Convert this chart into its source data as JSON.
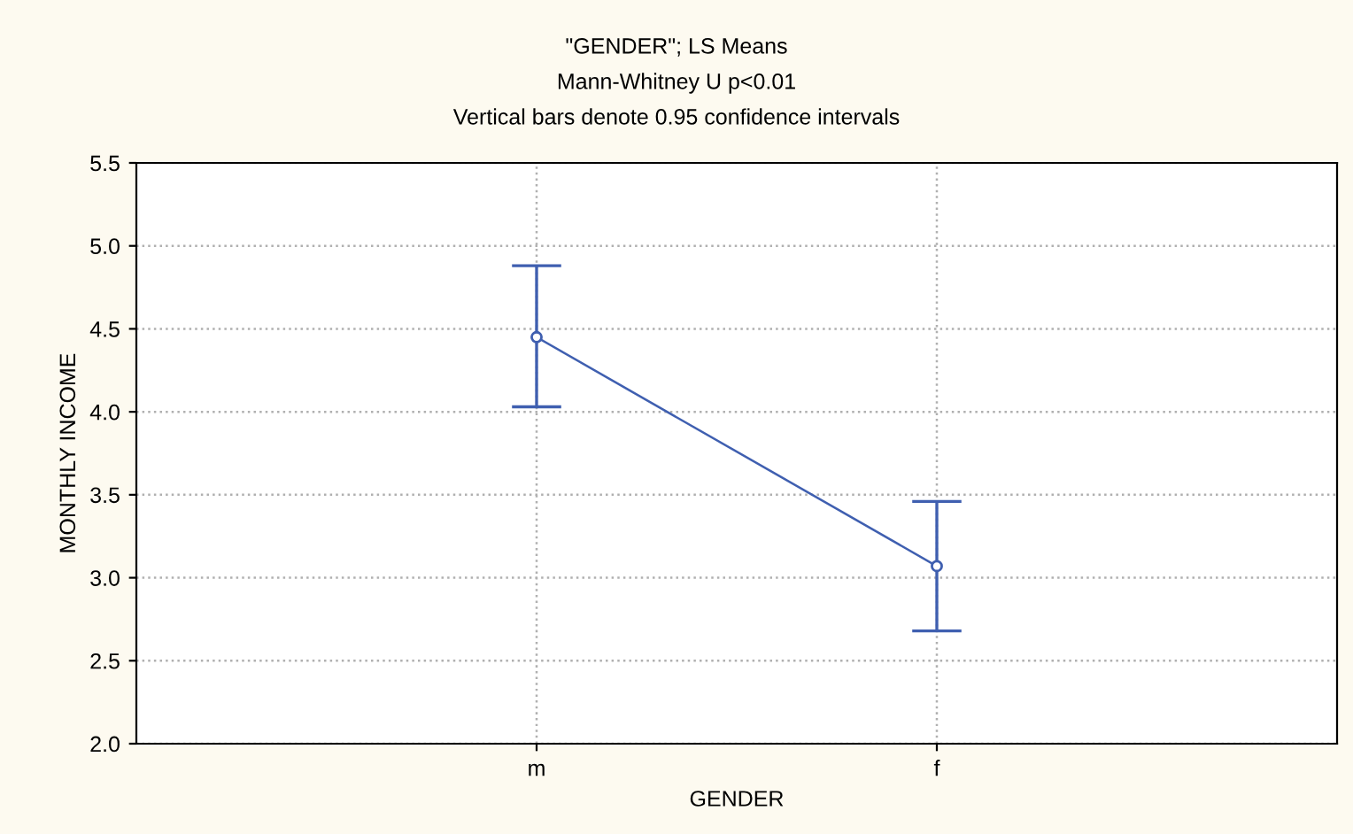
{
  "chart_data": {
    "type": "line",
    "title": "\"GENDER\"; LS Means",
    "subtitle": "Mann-Whitney U p<0.01",
    "annotations": [
      "Vertical bars denote 0.95 confidence intervals"
    ],
    "xlabel": "GENDER",
    "ylabel": "MONTHLY INCOME",
    "categories": [
      "m",
      "f"
    ],
    "series": [
      {
        "color": "#3f5fb0",
        "values": [
          4.45,
          3.07
        ],
        "errors": [
          [
            4.03,
            4.88
          ],
          [
            2.68,
            3.46
          ]
        ]
      }
    ],
    "ylim": [
      2.0,
      5.5
    ],
    "yticks": [
      {
        "value": 2.0,
        "label": "2.0"
      },
      {
        "value": 2.5,
        "label": "2.5"
      },
      {
        "value": 3.0,
        "label": "3.0"
      },
      {
        "value": 3.5,
        "label": "3.5"
      },
      {
        "value": 4.0,
        "label": "4.0"
      },
      {
        "value": 4.5,
        "label": "4.5"
      },
      {
        "value": 5.0,
        "label": "5.0"
      },
      {
        "value": 5.5,
        "label": "5.5"
      }
    ],
    "grid": true,
    "marker": "circle",
    "line_style": "solid"
  }
}
